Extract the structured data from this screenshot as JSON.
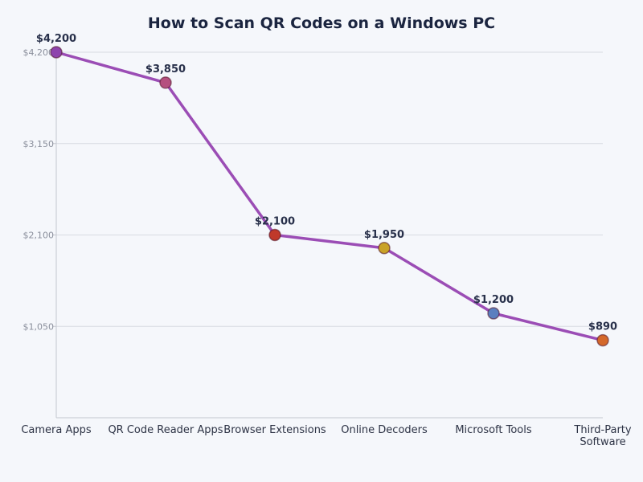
{
  "chart_data": {
    "type": "line",
    "title": "How to Scan QR Codes on a Windows PC",
    "categories": [
      "Camera Apps",
      "QR Code Reader Apps",
      "Browser Extensions",
      "Online Decoders",
      "Microsoft Tools",
      "Third-Party Software"
    ],
    "values": [
      4200,
      3850,
      2100,
      1950,
      1200,
      890
    ],
    "data_labels": [
      "$4,200",
      "$3,850",
      "$2,100",
      "$1,950",
      "$1,200",
      "$890"
    ],
    "point_colors": [
      "#8e44ad",
      "#b5507f",
      "#c0392b",
      "#c9a227",
      "#5b7fbf",
      "#d4682a"
    ],
    "line_color": "#9b4db5",
    "yticks": [
      1050,
      2100,
      3150,
      4200
    ],
    "ytick_labels": [
      "$1,050",
      "$2,100",
      "$3,150",
      "$4,200"
    ],
    "ylim": [
      0,
      4200
    ],
    "grid": true,
    "xlabel": "",
    "ylabel": ""
  }
}
